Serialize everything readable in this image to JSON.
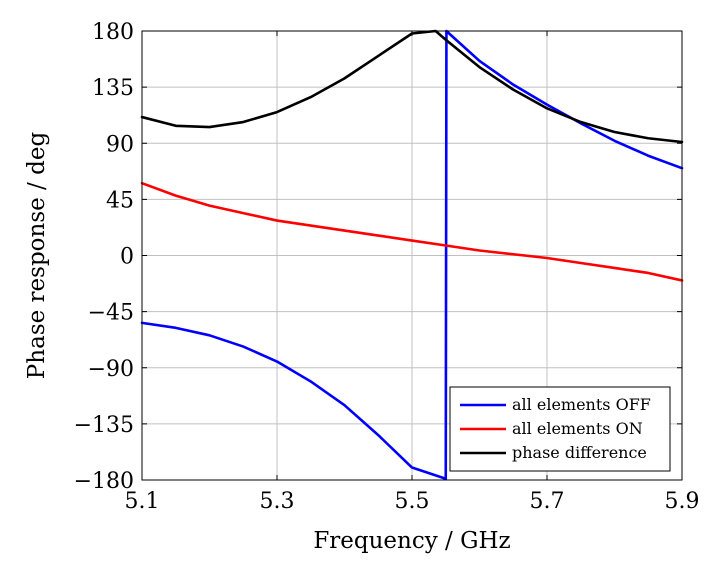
{
  "chart_data": {
    "type": "line",
    "title": "",
    "xlabel": "Frequency / GHz",
    "ylabel": "Phase response / deg",
    "xlim": [
      5.1,
      5.9
    ],
    "ylim": [
      -180,
      180
    ],
    "xticks": [
      5.1,
      5.3,
      5.5,
      5.7,
      5.9
    ],
    "xtick_labels": [
      "5.1",
      "5.3",
      "5.5",
      "5.7",
      "5.9"
    ],
    "yticks": [
      -180,
      -135,
      -90,
      -45,
      0,
      45,
      90,
      135,
      180
    ],
    "ytick_labels": [
      "−180",
      "−135",
      "−90",
      "−45",
      "0",
      "45",
      "90",
      "135",
      "180"
    ],
    "grid": true,
    "legend_position": "bottom-right",
    "series": [
      {
        "name": "all elements OFF",
        "color": "#0000ff",
        "x": [
          5.1,
          5.15,
          5.2,
          5.25,
          5.3,
          5.35,
          5.4,
          5.45,
          5.5,
          5.55,
          5.551,
          5.555,
          5.6,
          5.65,
          5.7,
          5.75,
          5.8,
          5.85,
          5.9
        ],
        "y": [
          -54,
          -58,
          -64,
          -73,
          -85,
          -101,
          -120,
          -144,
          -170,
          -179,
          180,
          178,
          156,
          137,
          121,
          106,
          92,
          80,
          70
        ]
      },
      {
        "name": "all elements ON",
        "color": "#ff0000",
        "x": [
          5.1,
          5.15,
          5.2,
          5.25,
          5.3,
          5.35,
          5.4,
          5.45,
          5.5,
          5.55,
          5.6,
          5.65,
          5.7,
          5.75,
          5.8,
          5.85,
          5.9
        ],
        "y": [
          58,
          48,
          40,
          34,
          28,
          24,
          20,
          16,
          12,
          8,
          4,
          1,
          -2,
          -6,
          -10,
          -14,
          -20
        ]
      },
      {
        "name": "phase difference",
        "color": "#000000",
        "x": [
          5.1,
          5.15,
          5.2,
          5.25,
          5.3,
          5.35,
          5.4,
          5.45,
          5.5,
          5.535,
          5.55,
          5.6,
          5.65,
          5.7,
          5.75,
          5.8,
          5.85,
          5.9
        ],
        "y": [
          111,
          104,
          103,
          107,
          115,
          127,
          142,
          160,
          178,
          180,
          173,
          151,
          133,
          118,
          107,
          99,
          94,
          91
        ]
      }
    ]
  }
}
